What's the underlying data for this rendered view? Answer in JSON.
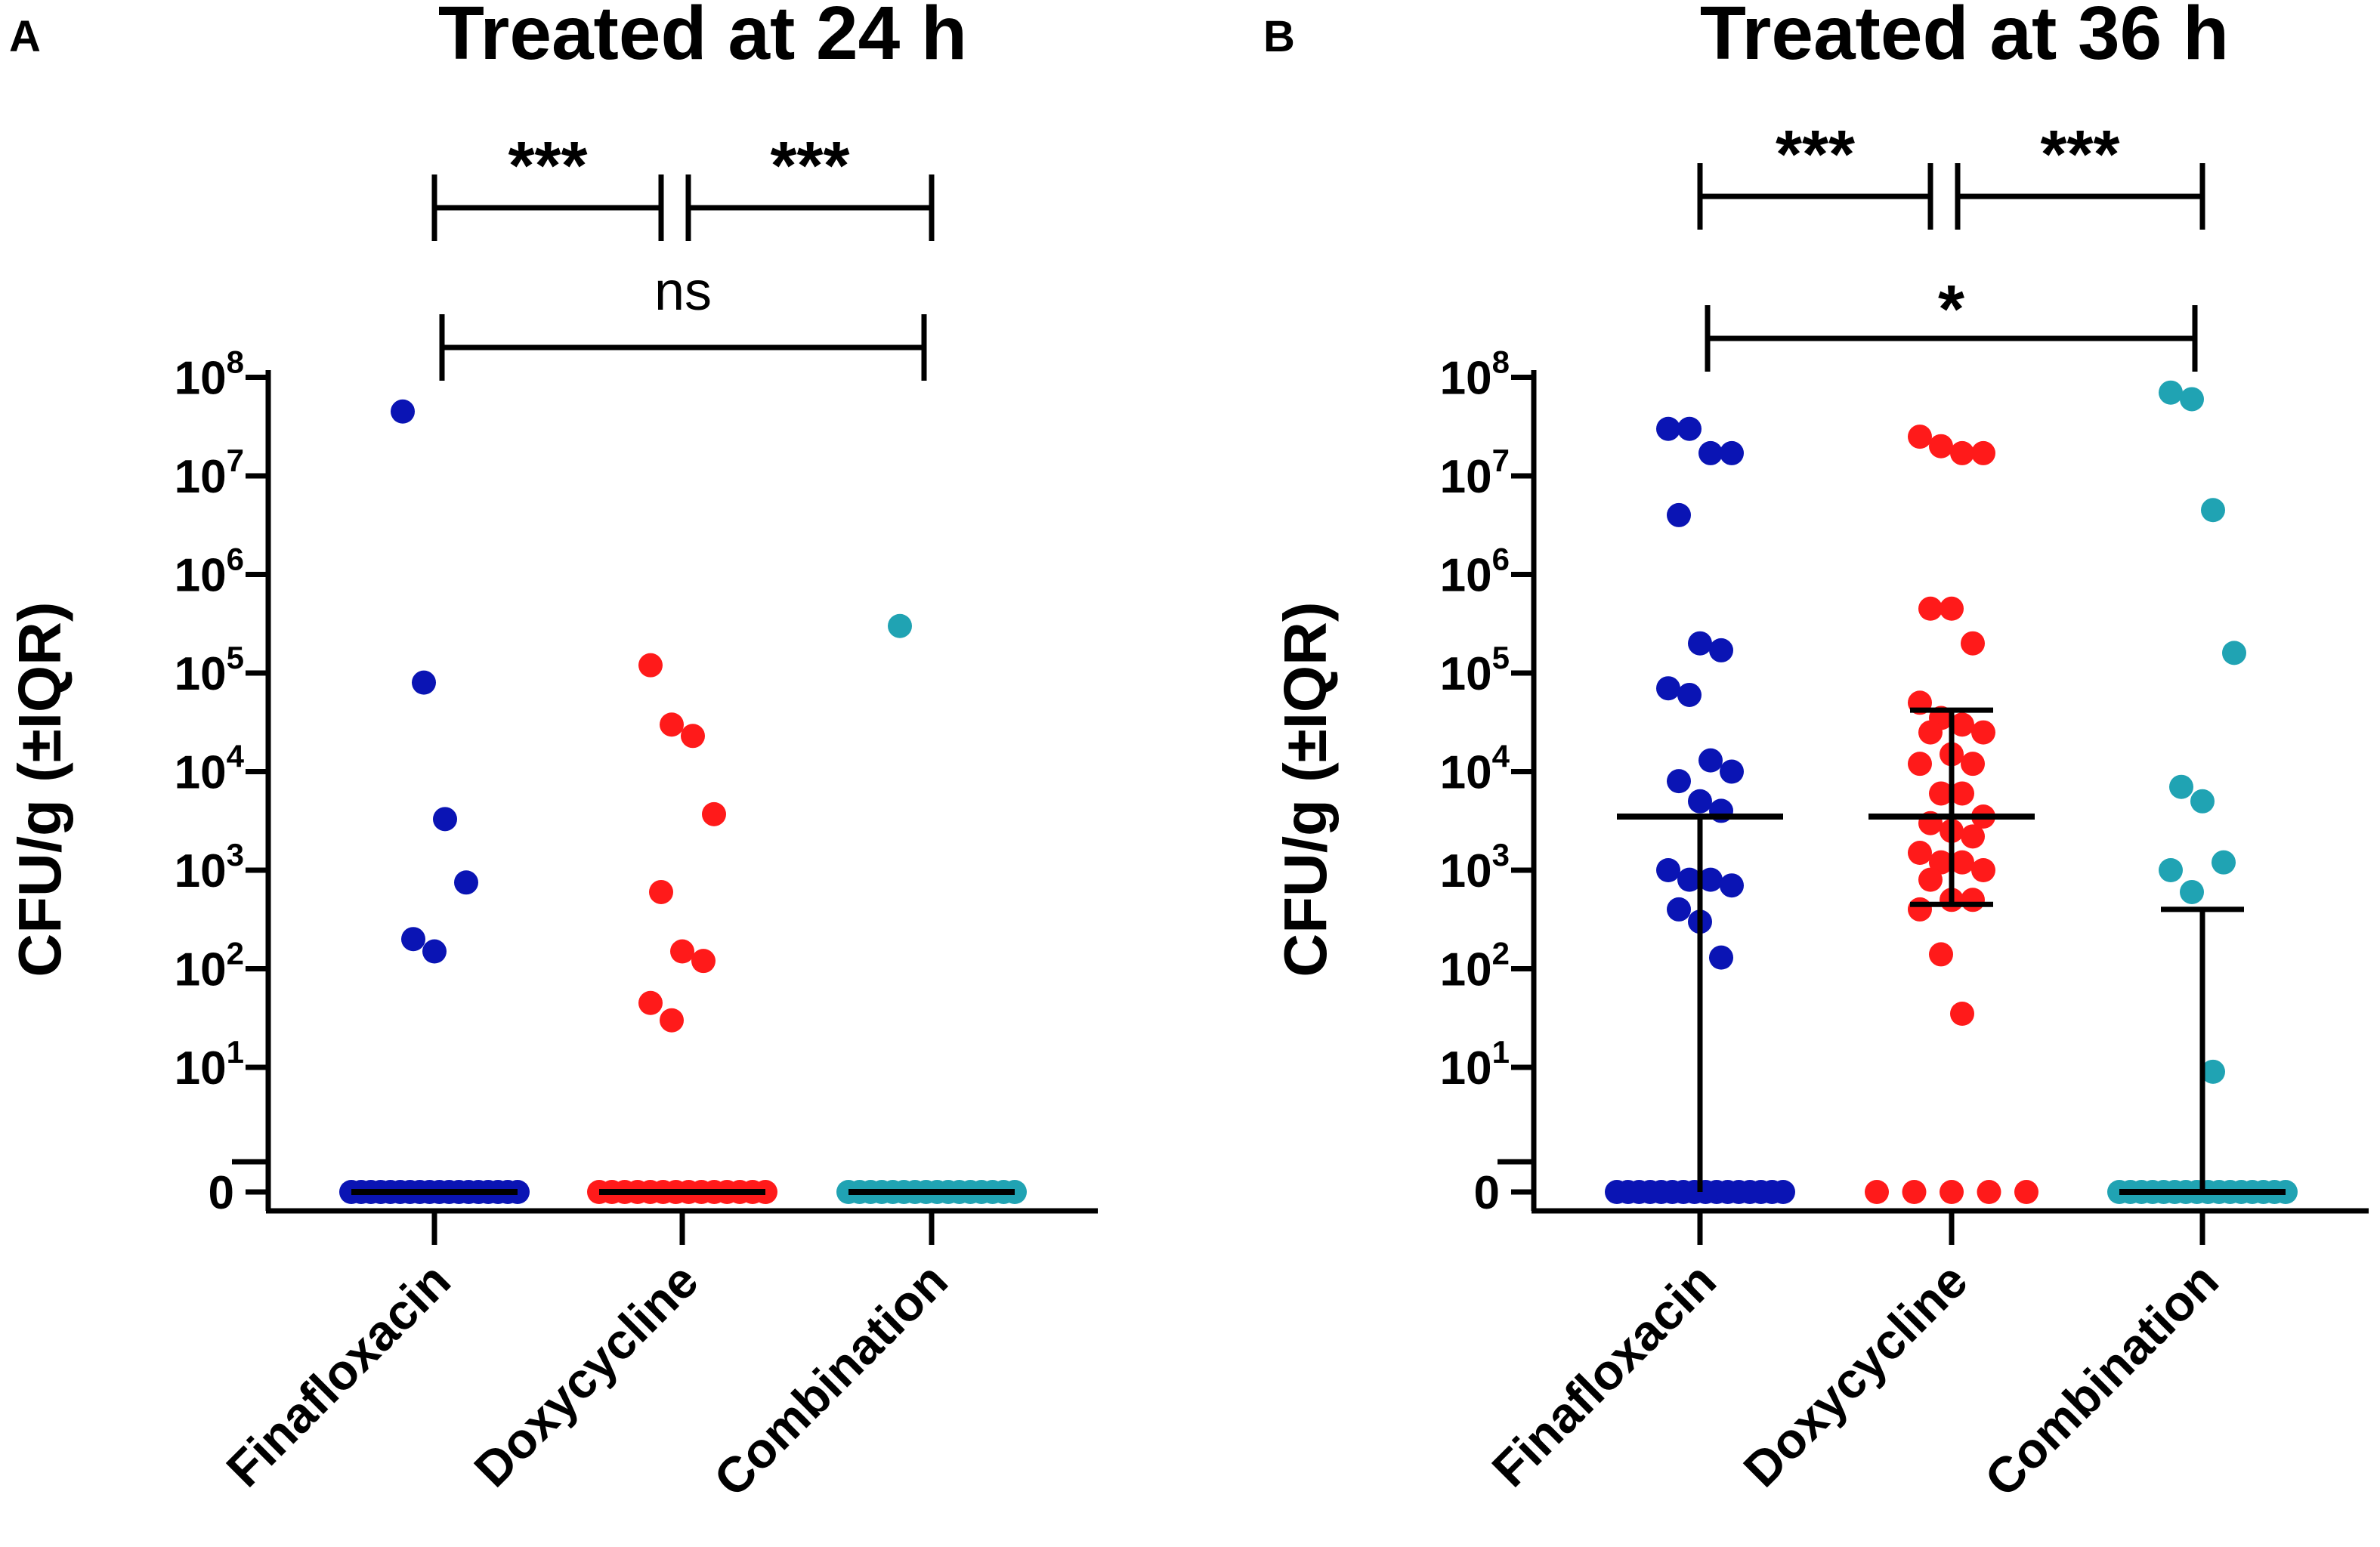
{
  "chart_data": [
    {
      "type": "scatter",
      "panel": "A",
      "title": "Treated at 24 h",
      "ylabel": "CFU/g (±IQR)",
      "yscale": "log10 with zero baseline",
      "ytick_labels": [
        "0",
        "10",
        "10",
        "10",
        "10",
        "10",
        "10",
        "10",
        "10"
      ],
      "ytick_exponents": [
        "",
        "1",
        "2",
        "3",
        "4",
        "5",
        "6",
        "7",
        "8"
      ],
      "categories": [
        "Finafloxacin",
        "Doxycycline",
        "Combination"
      ],
      "colors": [
        "#0a14b4",
        "#ff1a1a",
        "#20a3b3"
      ],
      "series": [
        {
          "name": "Finafloxacin",
          "values": [
            45000000,
            80000,
            3300,
            750,
            200,
            150,
            0
          ],
          "zero_count": 18
        },
        {
          "name": "Doxycycline",
          "values": [
            120000,
            30000,
            23000,
            3700,
            600,
            150,
            120,
            45,
            30,
            0
          ],
          "zero_count": 14
        },
        {
          "name": "Combination",
          "values": [
            300000,
            0
          ],
          "zero_count": 16
        }
      ],
      "median": [
        0,
        0,
        0
      ],
      "comparisons": [
        {
          "groups": [
            "Finafloxacin",
            "Doxycycline"
          ],
          "label": "***"
        },
        {
          "groups": [
            "Doxycycline",
            "Combination"
          ],
          "label": "***"
        },
        {
          "groups": [
            "Finafloxacin",
            "Combination"
          ],
          "label": "ns"
        }
      ]
    },
    {
      "type": "scatter",
      "panel": "B",
      "title": "Treated at 36 h",
      "ylabel": "CFU/g (±IQR)",
      "yscale": "log10 with zero baseline",
      "ytick_labels": [
        "0",
        "10",
        "10",
        "10",
        "10",
        "10",
        "10",
        "10",
        "10"
      ],
      "ytick_exponents": [
        "",
        "1",
        "2",
        "3",
        "4",
        "5",
        "6",
        "7",
        "8"
      ],
      "categories": [
        "Finafloxacin",
        "Doxycycline",
        "Combination"
      ],
      "colors": [
        "#0a14b4",
        "#ff1a1a",
        "#20a3b3"
      ],
      "series": [
        {
          "name": "Finafloxacin",
          "values": [
            30000000,
            30000000,
            17000000,
            17000000,
            4000000,
            200000,
            170000,
            70000,
            60000,
            13000,
            10000,
            8000,
            5000,
            4000,
            1000,
            800,
            800,
            700,
            400,
            300,
            130,
            0
          ],
          "zero_count": 16
        },
        {
          "name": "Doxycycline",
          "values": [
            25000000,
            20000000,
            17000000,
            17000000,
            450000,
            450000,
            200000,
            50000,
            35000,
            30000,
            25000,
            25000,
            15000,
            12000,
            12000,
            6000,
            6000,
            3500,
            3000,
            2500,
            2200,
            1500,
            1200,
            1200,
            1000,
            800,
            500,
            500,
            400,
            140,
            35,
            0,
            0,
            0,
            0,
            0
          ],
          "zero_count": 5
        },
        {
          "name": "Combination",
          "values": [
            70000000,
            60000000,
            4500000,
            160000,
            7000,
            5000,
            1200,
            1000,
            600,
            8,
            0
          ],
          "zero_count": 16
        }
      ],
      "median": [
        3500,
        3500,
        0
      ],
      "iqr": [
        [
          0,
          3500
        ],
        [
          450,
          42000
        ],
        [
          0,
          400
        ]
      ],
      "comparisons": [
        {
          "groups": [
            "Finafloxacin",
            "Doxycycline"
          ],
          "label": "***"
        },
        {
          "groups": [
            "Doxycycline",
            "Combination"
          ],
          "label": "***"
        },
        {
          "groups": [
            "Finafloxacin",
            "Combination"
          ],
          "label": "*"
        }
      ]
    }
  ]
}
